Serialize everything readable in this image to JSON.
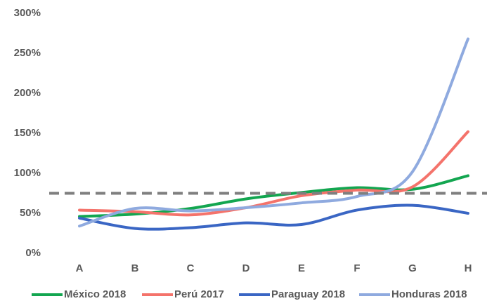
{
  "chart_data": {
    "type": "line",
    "categories": [
      "A",
      "B",
      "C",
      "D",
      "E",
      "F",
      "G",
      "H"
    ],
    "series": [
      {
        "name": "México 2018",
        "color": "#13a650",
        "values": [
          46,
          49,
          56,
          68,
          76,
          82,
          80,
          97
        ]
      },
      {
        "name": "Perú 2017",
        "color": "#f4736b",
        "values": [
          54,
          52,
          48,
          57,
          72,
          79,
          83,
          152
        ]
      },
      {
        "name": "Paraguay 2018",
        "color": "#3a66c4",
        "values": [
          44,
          31,
          32,
          38,
          36,
          54,
          60,
          50
        ]
      },
      {
        "name": "Honduras 2018",
        "color": "#8faadf",
        "values": [
          34,
          56,
          53,
          57,
          63,
          71,
          102,
          268
        ]
      }
    ],
    "reference_line": 75,
    "reference_color": "#7f7f7f",
    "ylim": [
      0,
      300
    ],
    "yticks": [
      {
        "value": 0,
        "label": "0%"
      },
      {
        "value": 50,
        "label": "50%"
      },
      {
        "value": 100,
        "label": "100%"
      },
      {
        "value": 150,
        "label": "150%"
      },
      {
        "value": 200,
        "label": "200%"
      },
      {
        "value": 250,
        "label": "250%"
      },
      {
        "value": 300,
        "label": "300%"
      }
    ],
    "smooth": true,
    "legend": "bottom"
  }
}
